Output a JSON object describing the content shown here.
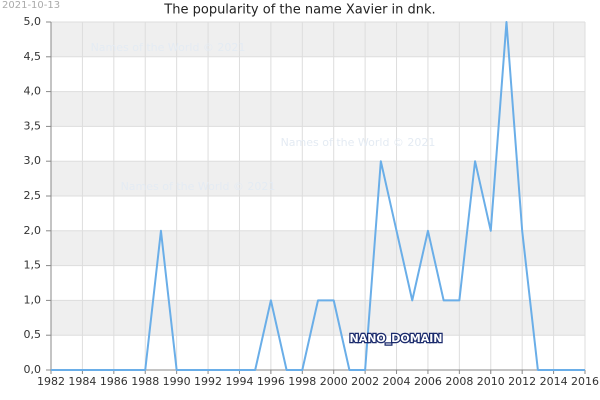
{
  "chart_data": {
    "type": "line",
    "title": "The popularity of the name Xavier in dnk.",
    "date": "2021-10-13",
    "watermarks": [
      "Names of the World © 2021",
      "Names of the World © 2021",
      "Names of the World © 2021"
    ],
    "brand": "NANO_DOMAIN",
    "x": [
      1982,
      1983,
      1984,
      1985,
      1986,
      1987,
      1988,
      1989,
      1990,
      1991,
      1992,
      1993,
      1994,
      1995,
      1996,
      1997,
      1998,
      1999,
      2000,
      2001,
      2002,
      2003,
      2004,
      2005,
      2006,
      2007,
      2008,
      2009,
      2010,
      2011,
      2012,
      2013,
      2014,
      2015,
      2016
    ],
    "values": [
      0,
      0,
      0,
      0,
      0,
      0,
      0,
      2,
      0,
      0,
      0,
      0,
      0,
      0,
      1,
      0,
      0,
      1,
      1,
      0,
      0,
      3,
      2,
      1,
      2,
      1,
      1,
      3,
      2,
      5,
      2,
      0,
      0,
      0,
      0
    ],
    "color": "#6aaee8",
    "xlim": [
      1982,
      2016
    ],
    "xticks": [
      1982,
      1984,
      1986,
      1988,
      1990,
      1992,
      1994,
      1996,
      1998,
      2000,
      2002,
      2004,
      2006,
      2008,
      2010,
      2012,
      2014,
      2016
    ],
    "ylim": [
      0,
      5
    ],
    "yticks": [
      {
        "value": 0,
        "label": "0,0"
      },
      {
        "value": 0.5,
        "label": "0,5"
      },
      {
        "value": 1,
        "label": "1,0"
      },
      {
        "value": 1.5,
        "label": "1,5"
      },
      {
        "value": 2,
        "label": "2,0"
      },
      {
        "value": 2.5,
        "label": "2,5"
      },
      {
        "value": 3,
        "label": "3,0"
      },
      {
        "value": 3.5,
        "label": "3,5"
      },
      {
        "value": 4,
        "label": "4,0"
      },
      {
        "value": 4.5,
        "label": "4,5"
      },
      {
        "value": 5,
        "label": "5,0"
      }
    ],
    "grid": true
  }
}
